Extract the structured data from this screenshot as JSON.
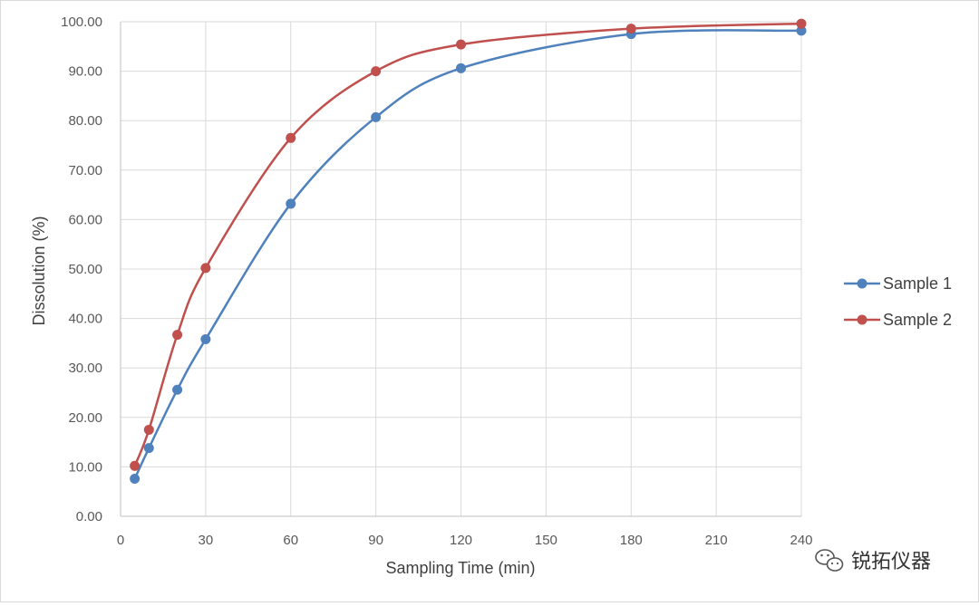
{
  "chart_data": {
    "type": "line",
    "title": "",
    "xlabel": "Sampling Time (min)",
    "ylabel": "Dissolution (%)",
    "xlim": [
      0,
      240
    ],
    "ylim": [
      0,
      100
    ],
    "x_ticks": [
      0,
      30,
      60,
      90,
      120,
      150,
      180,
      210,
      240
    ],
    "y_ticks": [
      "0.00",
      "10.00",
      "20.00",
      "30.00",
      "40.00",
      "50.00",
      "60.00",
      "70.00",
      "80.00",
      "90.00",
      "100.00"
    ],
    "grid": true,
    "legend_position": "right",
    "x": [
      5,
      10,
      20,
      30,
      60,
      90,
      120,
      180,
      240
    ],
    "series": [
      {
        "name": "Sample 1",
        "color": "#4F81BD",
        "values": [
          7.6,
          13.8,
          25.6,
          35.8,
          63.2,
          80.7,
          90.6,
          97.5,
          98.2
        ]
      },
      {
        "name": "Sample 2",
        "color": "#C0504D",
        "values": [
          10.2,
          17.5,
          36.7,
          50.2,
          76.5,
          90.0,
          95.4,
          98.6,
          99.6
        ]
      }
    ]
  },
  "watermark": {
    "text": "锐拓仪器",
    "icon": "wechat-icon"
  }
}
